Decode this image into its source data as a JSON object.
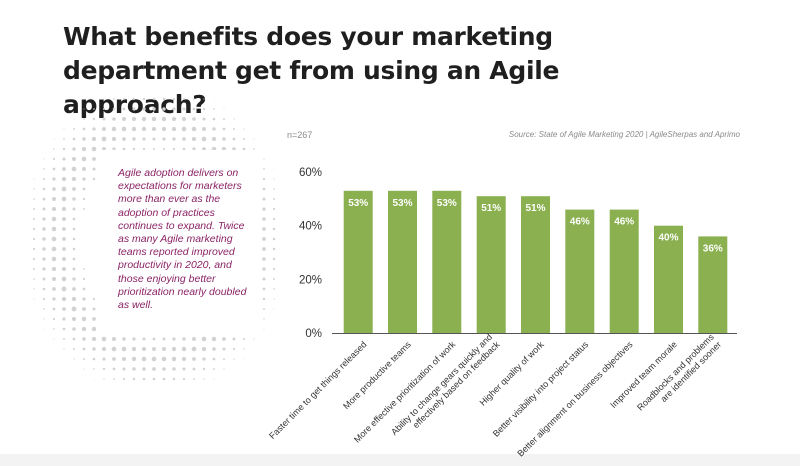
{
  "title": "What benefits does your marketing department get from using an Agile approach?",
  "sidebar_text": "Agile adoption delivers on expectations for marketers more than ever as the adoption of practices continues to expand. Twice as many Agile marketing teams reported improved productivity in 2020, and those enjoying better prioritization nearly doubled as well.",
  "sample_size": "n=267",
  "source": "Source: State of Agile Marketing 2020 | AgileSherpas and Aprimo",
  "colors": {
    "bar": "#8ab04f",
    "bar_label": "#ffffff",
    "sidebar_text": "#8b2466",
    "axis_text": "#333333",
    "title": "#1f1f1f"
  },
  "chart_data": {
    "type": "bar",
    "categories": [
      "Faster time to get things released",
      "More productive teams",
      "More effective prioritization of work",
      "Ability to change gears quickly and effectively based on feedback",
      "Higher quality of work",
      "Better visibility into project status",
      "Better alignment on business objectives",
      "Improved team morale",
      "Roadblocks and problems are identified sooner"
    ],
    "category_lines": [
      [
        "Faster time to get things released"
      ],
      [
        "More productive teams"
      ],
      [
        "More effective prioritization of work"
      ],
      [
        "Ability to change gears quickly and",
        "effectively based on feedback"
      ],
      [
        "Higher quality of work"
      ],
      [
        "Better visibility into project status"
      ],
      [
        "Better alignment on business objectives"
      ],
      [
        "Improved team morale"
      ],
      [
        "Roadblocks and problems",
        "are identified sooner"
      ]
    ],
    "values": [
      53,
      53,
      53,
      51,
      51,
      46,
      46,
      40,
      36
    ],
    "value_labels": [
      "53%",
      "53%",
      "53%",
      "51%",
      "51%",
      "46%",
      "46%",
      "40%",
      "36%"
    ],
    "ylim": [
      0,
      60
    ],
    "yticks": [
      0,
      20,
      40,
      60
    ],
    "ytick_labels": [
      "0%",
      "20%",
      "40%",
      "60%"
    ],
    "xlabel": "",
    "ylabel": "",
    "grid": false,
    "legend": "none"
  }
}
